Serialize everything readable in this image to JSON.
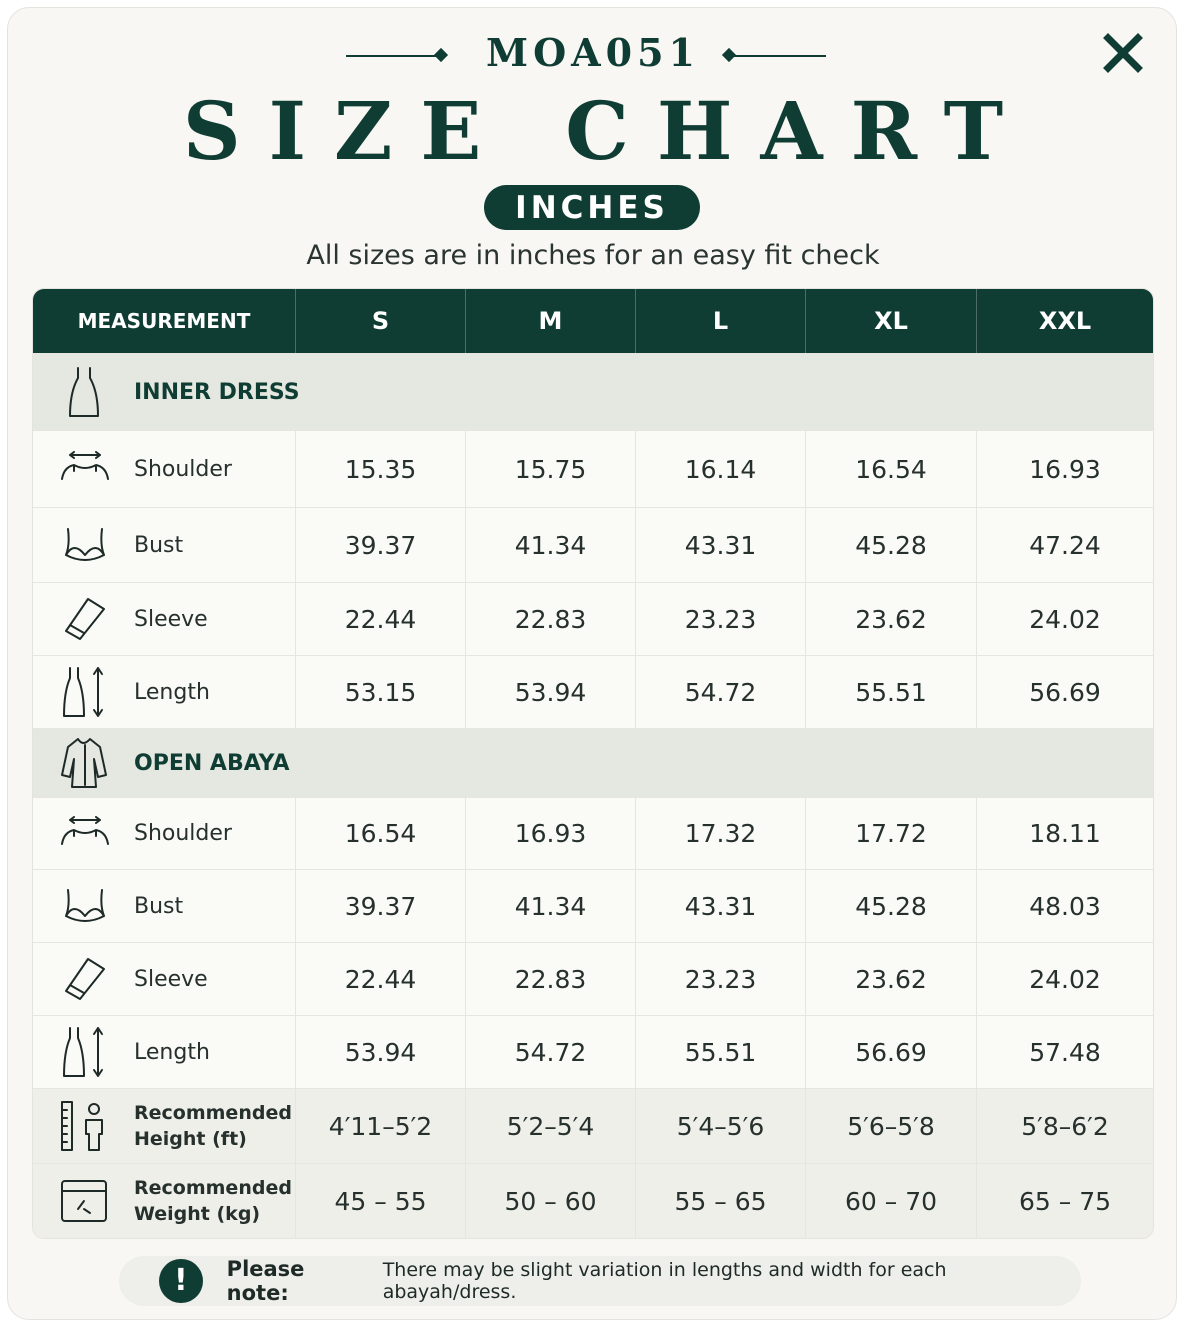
{
  "header": {
    "code": "MOA051",
    "title": "SIZE CHART",
    "unit_badge": "INCHES",
    "subtitle": "All sizes are in inches for an easy fit check"
  },
  "table": {
    "columns": [
      "MEASUREMENT",
      "S",
      "M",
      "L",
      "XL",
      "XXL"
    ],
    "sections": [
      {
        "title": "INNER DRESS",
        "rows": [
          {
            "label": "Shoulder",
            "values": [
              "15.35",
              "15.75",
              "16.14",
              "16.54",
              "16.93"
            ]
          },
          {
            "label": "Bust",
            "values": [
              "39.37",
              "41.34",
              "43.31",
              "45.28",
              "47.24"
            ]
          },
          {
            "label": "Sleeve",
            "values": [
              "22.44",
              "22.83",
              "23.23",
              "23.62",
              "24.02"
            ]
          },
          {
            "label": "Length",
            "values": [
              "53.15",
              "53.94",
              "54.72",
              "55.51",
              "56.69"
            ]
          }
        ]
      },
      {
        "title": "OPEN ABAYA",
        "rows": [
          {
            "label": "Shoulder",
            "values": [
              "16.54",
              "16.93",
              "17.32",
              "17.72",
              "18.11"
            ]
          },
          {
            "label": "Bust",
            "values": [
              "39.37",
              "41.34",
              "43.31",
              "45.28",
              "48.03"
            ]
          },
          {
            "label": "Sleeve",
            "values": [
              "22.44",
              "22.83",
              "23.23",
              "23.62",
              "24.02"
            ]
          },
          {
            "label": "Length",
            "values": [
              "53.94",
              "54.72",
              "55.51",
              "56.69",
              "57.48"
            ]
          }
        ]
      }
    ],
    "recommendations": [
      {
        "label": "Recommended Height (ft)",
        "values": [
          "4′11–5′2",
          "5′2–5′4",
          "5′4–5′6",
          "5′6–5′8",
          "5′8–6′2"
        ]
      },
      {
        "label": "Recommended Weight (kg)",
        "values": [
          "45 – 55",
          "50 – 60",
          "55 – 65",
          "60 – 70",
          "65 – 75"
        ]
      }
    ]
  },
  "note": {
    "label": "Please note:",
    "text": "There may be slight variation in lengths and width for each abayah/dress."
  }
}
